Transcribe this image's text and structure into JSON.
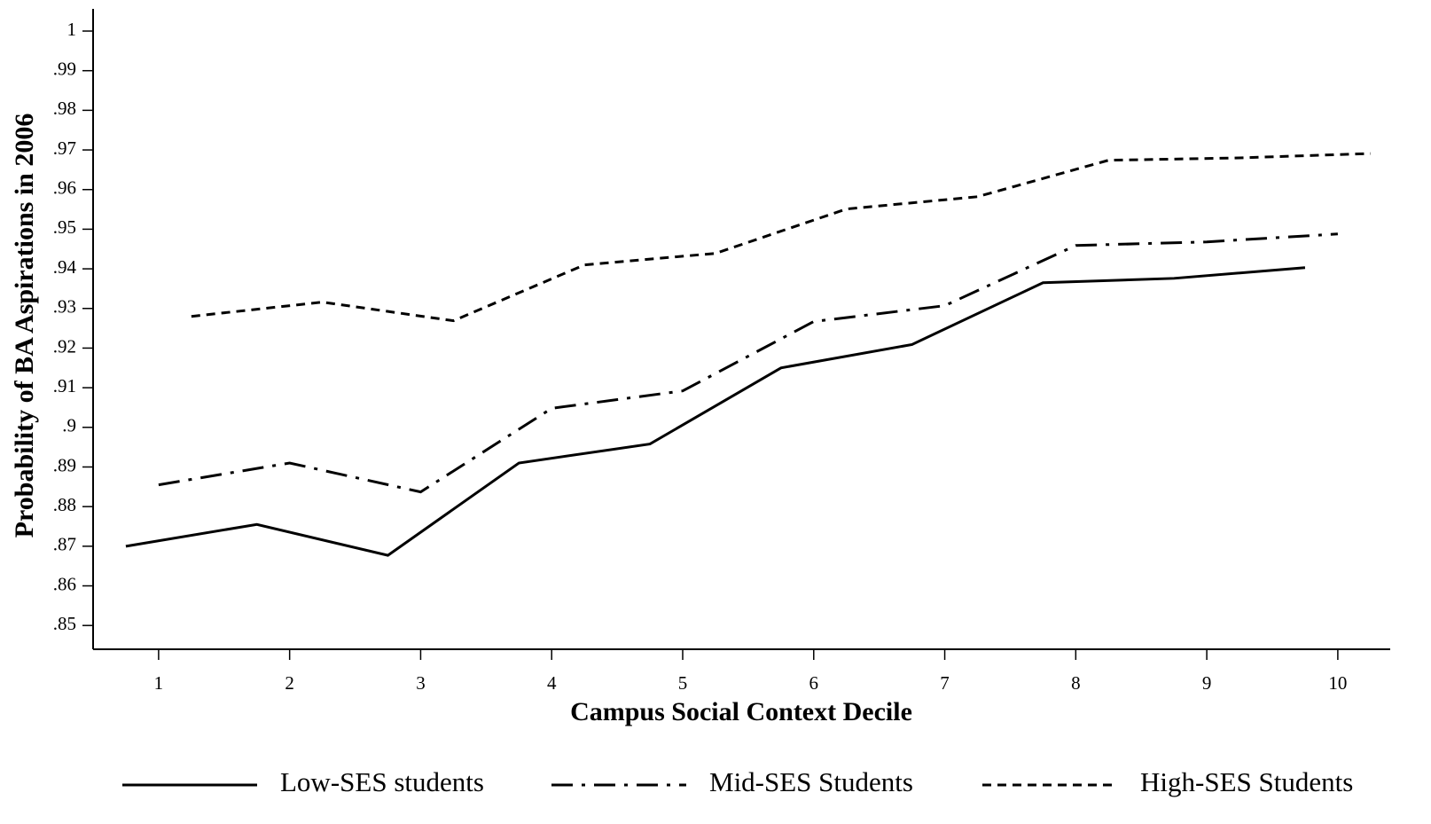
{
  "chart_data": {
    "type": "line",
    "xlabel": "Campus Social Context Decile",
    "ylabel": "Probability of BA Aspirations in 2006",
    "xlim": [
      0.5,
      10.4
    ],
    "ylim": [
      0.844,
      1.0056
    ],
    "xticks": [
      1,
      2,
      3,
      4,
      5,
      6,
      7,
      8,
      9,
      10
    ],
    "yticks": [
      {
        "value": 0.85,
        "label": ".85"
      },
      {
        "value": 0.86,
        "label": ".86"
      },
      {
        "value": 0.87,
        "label": ".87"
      },
      {
        "value": 0.88,
        "label": ".88"
      },
      {
        "value": 0.89,
        "label": ".89"
      },
      {
        "value": 0.9,
        "label": ".9"
      },
      {
        "value": 0.91,
        "label": ".91"
      },
      {
        "value": 0.92,
        "label": ".92"
      },
      {
        "value": 0.93,
        "label": ".93"
      },
      {
        "value": 0.94,
        "label": ".94"
      },
      {
        "value": 0.95,
        "label": ".95"
      },
      {
        "value": 0.96,
        "label": ".96"
      },
      {
        "value": 0.97,
        "label": ".97"
      },
      {
        "value": 0.98,
        "label": ".98"
      },
      {
        "value": 0.99,
        "label": ".99"
      },
      1
    ],
    "grid": false,
    "legend": "bottom",
    "series": [
      {
        "name": "Low-SES students",
        "color": "#000000",
        "linestyle": "solid",
        "x": [
          0.75,
          1.75,
          2.75,
          3.75,
          4.75,
          5.75,
          6.75,
          7.75,
          8.75,
          9.75
        ],
        "values": [
          0.87,
          0.8755,
          0.8677,
          0.891,
          0.8958,
          0.915,
          0.9209,
          0.9365,
          0.9376,
          0.9403
        ]
      },
      {
        "name": "Mid-SES Students",
        "color": "#000000",
        "linestyle": "dashdot",
        "x": [
          1,
          2,
          3,
          4,
          5,
          6,
          7,
          8,
          9,
          10
        ],
        "values": [
          0.8855,
          0.891,
          0.8837,
          0.9048,
          0.9092,
          0.9267,
          0.9307,
          0.9459,
          0.9468,
          0.9488
        ]
      },
      {
        "name": "High-SES Students",
        "color": "#000000",
        "linestyle": "dashed",
        "x": [
          1.25,
          2.25,
          3.25,
          4.25,
          5.25,
          6.25,
          7.25,
          8.25,
          9.25,
          10.25
        ],
        "values": [
          0.928,
          0.9316,
          0.9269,
          0.941,
          0.9439,
          0.9551,
          0.9582,
          0.9674,
          0.968,
          0.9691
        ]
      }
    ]
  }
}
